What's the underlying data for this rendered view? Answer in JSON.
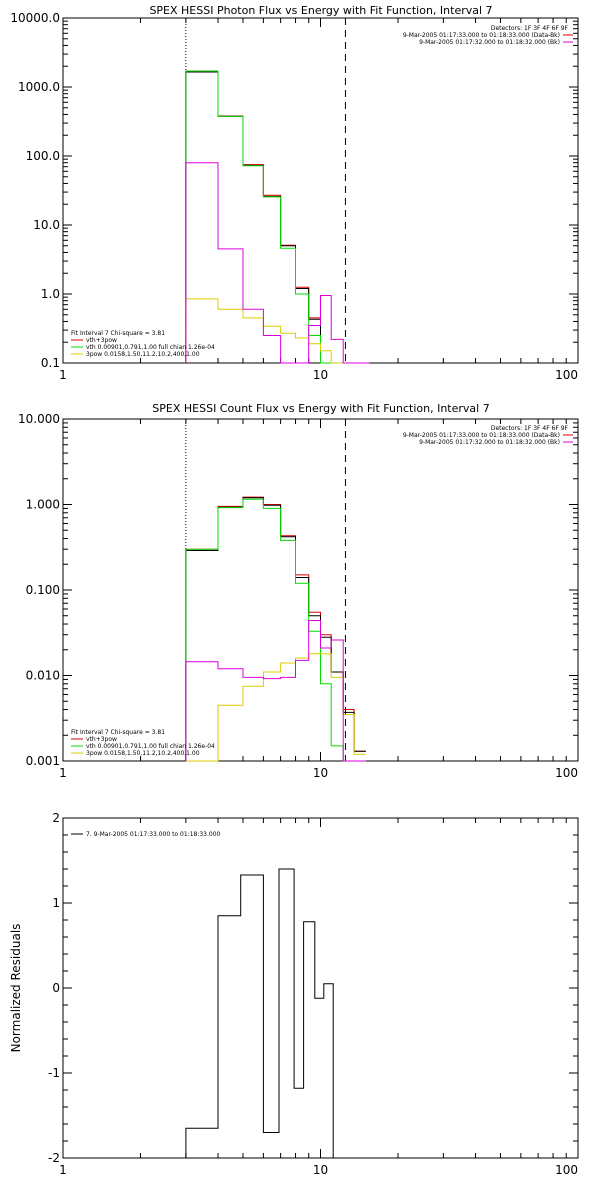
{
  "chart_data": [
    {
      "type": "line",
      "title": "SPEX HESSI Photon Flux vs Energy with Fit Function, Interval 7",
      "xscale": "log",
      "yscale": "log",
      "xlim": [
        1,
        100
      ],
      "ylim": [
        0.1,
        10000
      ],
      "xticks": [
        1,
        10,
        100
      ],
      "xtick_labels": [
        "1",
        "10",
        "100"
      ],
      "yticks": [
        0.1,
        1,
        10,
        100,
        1000,
        10000
      ],
      "ytick_labels": [
        "0.1",
        "1.0",
        "10.0",
        "100.0",
        "1000.0",
        "10000.0"
      ],
      "vlines": [
        {
          "x": 3.0,
          "style": "dotted"
        },
        {
          "x": 12.5,
          "style": "dashed"
        }
      ],
      "info_text": [
        {
          "text": "Detectors: 1F 3F 4F 6F 9F",
          "color": "#000000"
        },
        {
          "text": "9-Mar-2005 01:17:33.000 to 01:18:33.000 (Data-Bk)",
          "color": "#000000"
        },
        {
          "text": "9-Mar-2005 01:17:32.000 to 01:18:32.000 (Bk)",
          "color": "#000000"
        }
      ],
      "fit_legend": [
        {
          "text": "Fit Interval  7   Chi-square = 3.81",
          "color": "#000000"
        },
        {
          "text": "vth+3pow",
          "color": "#000000"
        },
        {
          "text": "vth 0.00901,0.791,1.00  full chian 1.26e-04",
          "color": "#00dd00"
        },
        {
          "text": "3pow 0.0158,1.50,11.2,10.2,400,1.00",
          "color": "#ddcc00"
        }
      ],
      "bin_edges": [
        3.0,
        4.0,
        5.0,
        6.0,
        7.0,
        8.0,
        9.0,
        10.0,
        11.0,
        12.25,
        14.0,
        15.5
      ],
      "series": [
        {
          "name": "Data-Bk",
          "color": "#dd0000",
          "values": [
            1700,
            380,
            75,
            27,
            5.1,
            1.25,
            0.45,
            0.1,
            0.1,
            0.1,
            0.1
          ]
        },
        {
          "name": "vth+3pow",
          "color": "#000000",
          "values": [
            1650,
            375,
            73,
            26,
            5.0,
            1.2,
            0.43,
            0.1,
            0.1,
            0.1,
            0.1
          ]
        },
        {
          "name": "vth",
          "color": "#00dd00",
          "values": [
            1700,
            375,
            72,
            25.5,
            4.6,
            1.0,
            0.25,
            0.1,
            0.1,
            0.1,
            0.1
          ]
        },
        {
          "name": "3pow",
          "color": "#ddcc00",
          "values": [
            0.85,
            0.6,
            0.45,
            0.34,
            0.27,
            0.23,
            0.19,
            0.15,
            0.1,
            0.1,
            0.1
          ]
        },
        {
          "name": "Bk",
          "color": "#dd00dd",
          "values": [
            80,
            4.5,
            0.6,
            0.25,
            0.1,
            0.1,
            0.35,
            0.95,
            0.22,
            0.1,
            0.1
          ]
        }
      ]
    },
    {
      "type": "line",
      "title": "SPEX HESSI Count Flux vs Energy with Fit Function, Interval 7",
      "xscale": "log",
      "yscale": "log",
      "xlim": [
        1,
        100
      ],
      "ylim": [
        0.001,
        10
      ],
      "xticks": [
        1,
        10,
        100
      ],
      "xtick_labels": [
        "1",
        "10",
        "100"
      ],
      "yticks": [
        0.001,
        0.01,
        0.1,
        1,
        10
      ],
      "ytick_labels": [
        "0.001",
        "0.010",
        "0.100",
        "1.000",
        "10.000"
      ],
      "vlines": [
        {
          "x": 3.0,
          "style": "dotted"
        },
        {
          "x": 12.5,
          "style": "dashed"
        }
      ],
      "info_text": [
        {
          "text": "Detectors: 1F 3F 4F 6F 9F",
          "color": "#000000"
        },
        {
          "text": "9-Mar-2005 01:17:33.000 to 01:18:33.000 (Data-Bk)",
          "color": "#000000"
        },
        {
          "text": "9-Mar-2005 01:17:32.000 to 01:18:32.000 (Bk)",
          "color": "#000000"
        }
      ],
      "fit_legend": [
        {
          "text": "Fit Interval  7   Chi-square = 3.81",
          "color": "#000000"
        },
        {
          "text": "vth+3pow",
          "color": "#000000"
        },
        {
          "text": "vth 0.00901,0.791,1.00  full chian 1.26e-04",
          "color": "#00dd00"
        },
        {
          "text": "3pow 0.0158,1.50,11.2,10.2,400,1.00",
          "color": "#ddcc00"
        }
      ],
      "bin_edges": [
        3.0,
        4.0,
        5.0,
        6.0,
        7.0,
        8.0,
        9.0,
        10.0,
        11.0,
        12.25,
        13.5,
        15.0
      ],
      "series": [
        {
          "name": "Data-Bk",
          "color": "#dd0000",
          "values": [
            0.3,
            0.95,
            1.22,
            1.0,
            0.43,
            0.15,
            0.055,
            0.03,
            0.011,
            0.004,
            0.0013
          ]
        },
        {
          "name": "vth+3pow",
          "color": "#000000",
          "values": [
            0.29,
            0.93,
            1.2,
            0.98,
            0.42,
            0.14,
            0.05,
            0.028,
            0.011,
            0.0037,
            0.0013
          ]
        },
        {
          "name": "vth",
          "color": "#00dd00",
          "values": [
            0.3,
            0.92,
            1.15,
            0.9,
            0.38,
            0.12,
            0.033,
            0.008,
            0.0015,
            0.001,
            0.001
          ]
        },
        {
          "name": "3pow",
          "color": "#ddcc00",
          "values": [
            0.001,
            0.0045,
            0.0075,
            0.011,
            0.014,
            0.016,
            0.018,
            0.018,
            0.0095,
            0.0035,
            0.0012
          ]
        },
        {
          "name": "Bk",
          "color": "#dd00dd",
          "values": [
            0.0145,
            0.012,
            0.0095,
            0.0092,
            0.0095,
            0.015,
            0.044,
            0.021,
            0.026,
            0.001,
            0.001
          ]
        }
      ]
    },
    {
      "type": "line",
      "title": "",
      "ylabel": "Normalized Residuals",
      "xscale": "log",
      "yscale": "linear",
      "xlim": [
        1,
        100
      ],
      "ylim": [
        -2,
        2
      ],
      "xticks": [
        1,
        10,
        100
      ],
      "xtick_labels": [
        "1",
        "10",
        "100"
      ],
      "yticks": [
        -2,
        -1,
        0,
        1,
        2
      ],
      "ytick_labels": [
        "-2",
        "-1",
        "0",
        "1",
        "2"
      ],
      "legend_text": "7.  9-Mar-2005 01:17:33.000 to 01:18:33.000",
      "bin_edges": [
        3.0,
        4.0,
        4.9,
        6.0,
        6.9,
        7.9,
        8.6,
        9.5,
        10.3,
        11.2,
        12.2
      ],
      "series": [
        {
          "name": "7.  9-Mar-2005 01:17:33.000 to 01:18:33.000",
          "color": "#000000",
          "values": [
            -1.65,
            0.85,
            1.33,
            -1.7,
            1.4,
            -1.18,
            0.78,
            -0.12,
            0.05,
            -2.0
          ]
        }
      ]
    }
  ]
}
